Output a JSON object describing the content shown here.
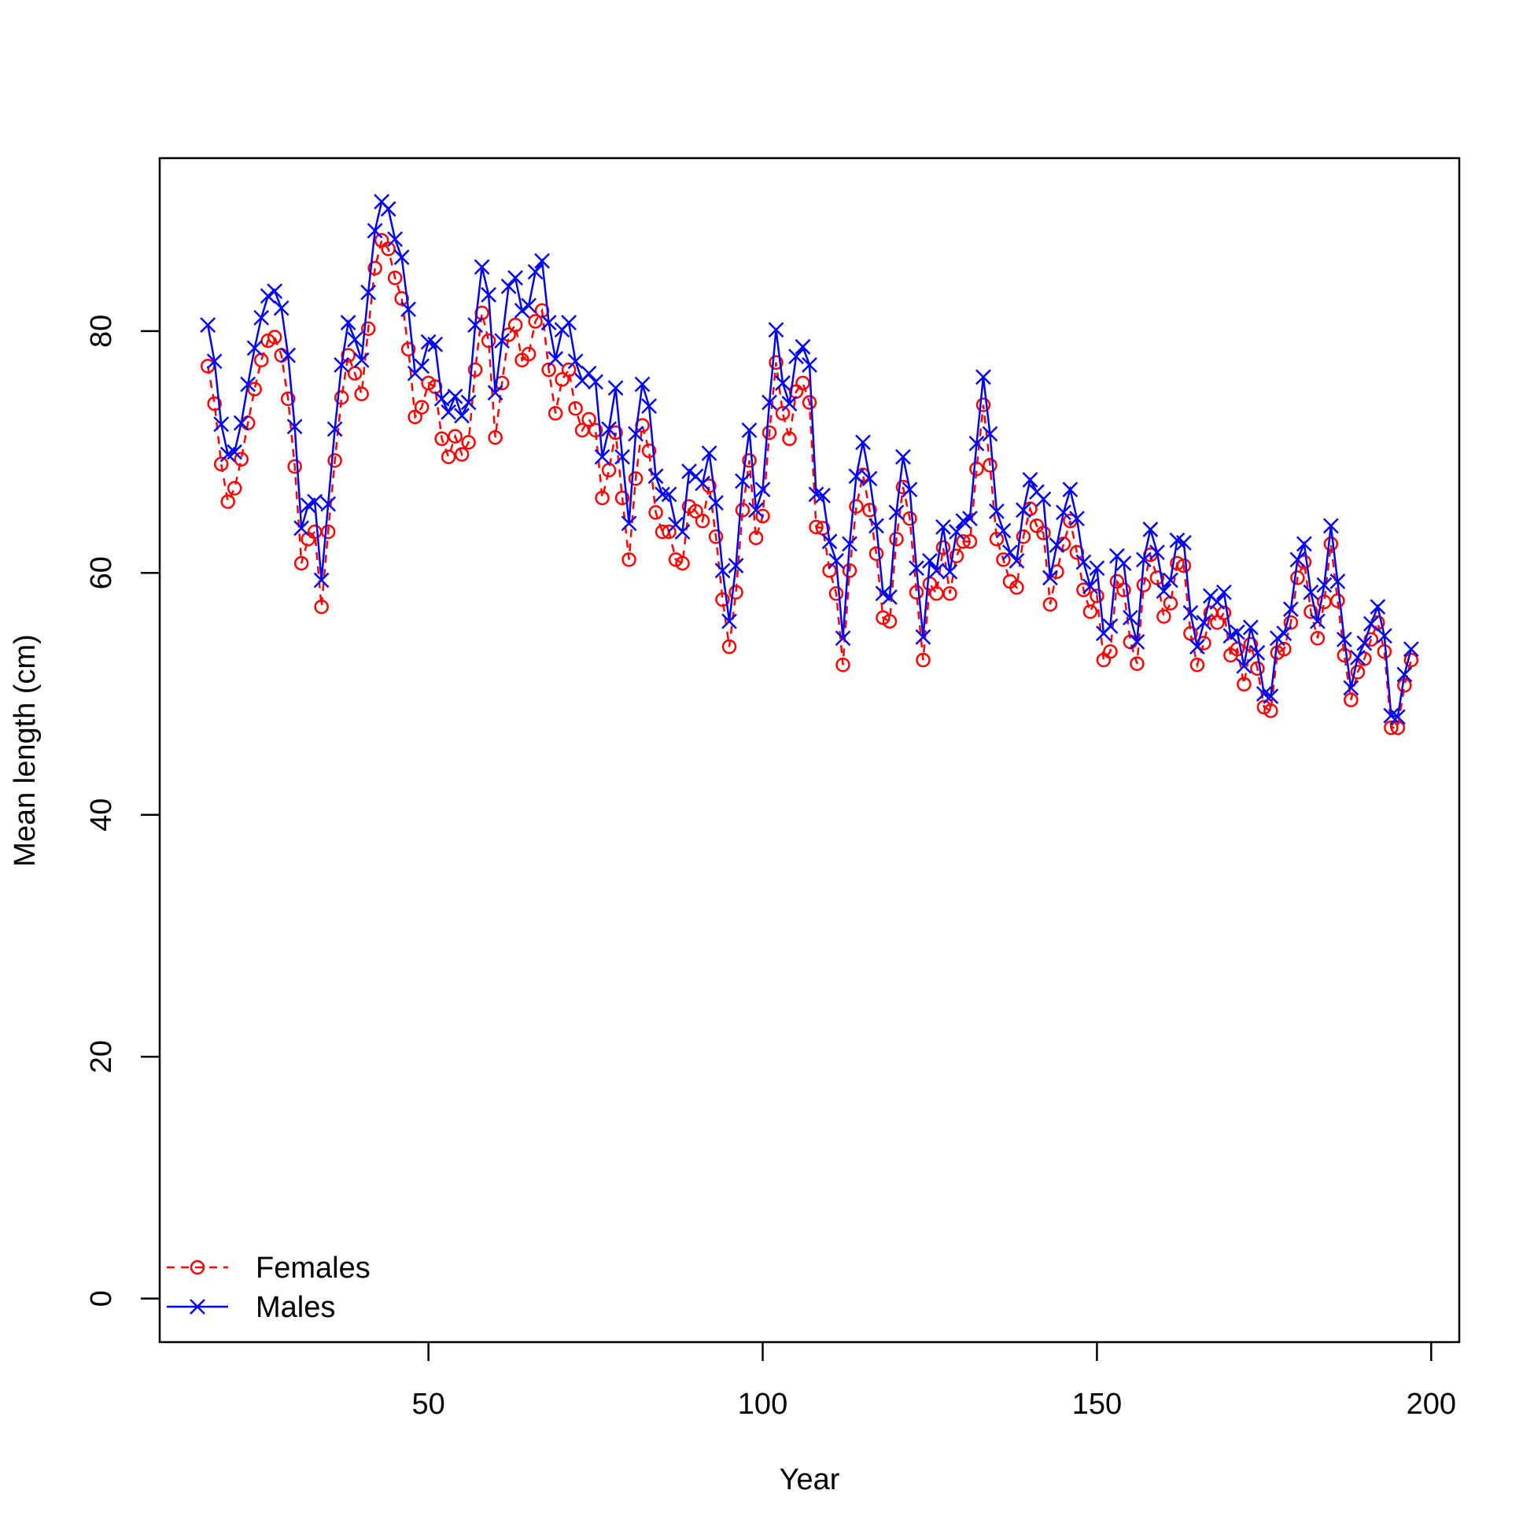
{
  "chart_data": {
    "type": "line",
    "x_label": "Year",
    "y_label": "Mean length (cm)",
    "x": [
      17,
      18,
      19,
      20,
      21,
      22,
      23,
      24,
      25,
      26,
      27,
      28,
      29,
      30,
      31,
      32,
      33,
      34,
      35,
      36,
      37,
      38,
      39,
      40,
      41,
      42,
      43,
      44,
      45,
      46,
      47,
      48,
      49,
      50,
      51,
      52,
      53,
      54,
      55,
      56,
      57,
      58,
      59,
      60,
      61,
      62,
      63,
      64,
      65,
      66,
      67,
      68,
      69,
      70,
      71,
      72,
      73,
      74,
      75,
      76,
      77,
      78,
      79,
      80,
      81,
      82,
      83,
      84,
      85,
      86,
      87,
      88,
      89,
      90,
      91,
      92,
      93,
      94,
      95,
      96,
      97,
      98,
      99,
      100,
      101,
      102,
      103,
      104,
      105,
      106,
      107,
      108,
      109,
      110,
      111,
      112,
      113,
      114,
      115,
      116,
      117,
      118,
      119,
      120,
      121,
      122,
      123,
      124,
      125,
      126,
      127,
      128,
      129,
      130,
      131,
      132,
      133,
      134,
      135,
      136,
      137,
      138,
      139,
      140,
      141,
      142,
      143,
      144,
      145,
      146,
      147,
      148,
      149,
      150,
      151,
      152,
      153,
      154,
      155,
      156,
      157,
      158,
      159,
      160,
      161,
      162,
      163,
      164,
      165,
      166,
      167,
      168,
      169,
      170,
      171,
      172,
      173,
      174,
      175,
      176,
      177,
      178,
      179,
      180,
      181,
      182,
      183,
      184,
      185,
      186,
      187,
      188,
      189,
      190,
      191,
      192,
      193,
      194,
      195,
      196,
      197
    ],
    "series": [
      {
        "name": "Females",
        "color": "#ff0000",
        "line": "dashed",
        "marker": "circle",
        "values": [
          77.1,
          74.0,
          69.0,
          65.9,
          67.0,
          69.4,
          72.4,
          75.2,
          77.6,
          79.2,
          79.5,
          78.0,
          74.4,
          68.8,
          60.8,
          62.8,
          63.4,
          57.2,
          63.4,
          69.3,
          74.5,
          78.0,
          76.5,
          74.8,
          80.2,
          85.2,
          87.5,
          86.8,
          84.4,
          82.7,
          78.5,
          72.9,
          73.7,
          75.7,
          75.4,
          71.1,
          69.6,
          71.3,
          69.8,
          70.8,
          76.8,
          81.5,
          79.2,
          71.2,
          75.7,
          79.7,
          80.5,
          77.6,
          78.1,
          80.8,
          81.7,
          76.8,
          73.2,
          76.0,
          76.8,
          73.6,
          71.8,
          72.7,
          71.8,
          66.2,
          68.5,
          71.6,
          66.2,
          61.1,
          67.8,
          72.2,
          70.1,
          65.0,
          63.4,
          63.4,
          61.1,
          60.8,
          65.5,
          65.1,
          64.3,
          67.2,
          63.0,
          57.8,
          53.9,
          58.4,
          65.2,
          69.3,
          62.9,
          64.7,
          71.6,
          77.4,
          73.2,
          71.1,
          75.0,
          75.7,
          74.1,
          63.8,
          63.7,
          60.2,
          58.3,
          52.4,
          60.2,
          65.5,
          68.1,
          65.2,
          61.6,
          56.3,
          56.0,
          62.8,
          67.1,
          64.5,
          58.4,
          52.8,
          59.1,
          58.3,
          62.1,
          58.3,
          61.4,
          62.6,
          62.6,
          68.6,
          73.9,
          68.9,
          62.8,
          61.1,
          59.3,
          58.8,
          63.0,
          65.3,
          63.9,
          63.3,
          57.4,
          60.1,
          62.4,
          64.3,
          61.7,
          58.6,
          56.8,
          58.1,
          52.8,
          53.5,
          59.3,
          58.6,
          54.3,
          52.5,
          59.0,
          61.5,
          59.6,
          56.4,
          57.5,
          60.8,
          60.6,
          55.0,
          52.4,
          54.2,
          56.7,
          55.9,
          56.7,
          53.2,
          53.7,
          50.8,
          54.1,
          52.1,
          48.9,
          48.6,
          53.4,
          53.7,
          55.9,
          59.6,
          60.9,
          56.8,
          54.6,
          57.6,
          62.4,
          57.7,
          53.2,
          49.5,
          51.8,
          52.9,
          54.5,
          55.9,
          53.5,
          47.2,
          47.2,
          50.7,
          52.8
        ]
      },
      {
        "name": "Males",
        "color": "#0000ff",
        "line": "solid",
        "marker": "x",
        "values": [
          80.5,
          77.5,
          72.3,
          69.8,
          70.0,
          72.4,
          75.6,
          78.6,
          81.1,
          82.9,
          83.3,
          81.9,
          78.0,
          72.1,
          63.7,
          65.6,
          65.9,
          59.4,
          65.7,
          71.9,
          77.2,
          80.7,
          79.3,
          77.6,
          83.2,
          88.3,
          90.7,
          90.1,
          87.6,
          86.1,
          81.8,
          76.5,
          77.1,
          79.1,
          78.9,
          74.4,
          73.3,
          74.6,
          73.0,
          74.1,
          80.5,
          85.3,
          83.0,
          74.9,
          79.2,
          83.7,
          84.4,
          81.7,
          82.1,
          84.9,
          85.8,
          80.7,
          77.7,
          80.1,
          80.7,
          77.5,
          75.9,
          76.5,
          75.8,
          69.6,
          71.9,
          75.3,
          69.6,
          64.1,
          71.5,
          75.6,
          73.8,
          68.0,
          66.5,
          66.5,
          64.0,
          63.4,
          68.4,
          68.0,
          67.4,
          69.9,
          65.8,
          60.2,
          56.0,
          60.6,
          67.6,
          71.8,
          65.2,
          66.9,
          74.1,
          80.1,
          75.7,
          74.0,
          77.9,
          78.7,
          77.2,
          66.5,
          66.4,
          62.6,
          61.0,
          54.6,
          62.4,
          68.0,
          70.8,
          67.8,
          63.9,
          58.3,
          58.0,
          65.0,
          69.6,
          66.9,
          60.4,
          54.7,
          61.0,
          60.2,
          63.8,
          60.1,
          63.4,
          64.3,
          64.5,
          70.7,
          76.2,
          71.5,
          65.1,
          63.5,
          61.7,
          61.0,
          65.2,
          67.7,
          66.7,
          66.1,
          59.6,
          62.3,
          65.0,
          66.9,
          64.5,
          60.9,
          58.9,
          60.4,
          55.0,
          55.6,
          61.4,
          60.8,
          56.3,
          54.3,
          61.1,
          63.6,
          61.7,
          58.5,
          59.4,
          62.7,
          62.5,
          56.7,
          53.9,
          55.9,
          58.1,
          57.6,
          58.4,
          54.8,
          55.1,
          52.3,
          55.5,
          53.4,
          50.0,
          49.8,
          54.6,
          55.0,
          57.0,
          61.1,
          62.4,
          58.4,
          56.0,
          59.0,
          63.9,
          59.3,
          54.5,
          50.5,
          53.0,
          54.2,
          55.8,
          57.2,
          54.8,
          48.2,
          48.1,
          51.6,
          53.7
        ]
      }
    ],
    "xlim": [
      9.8,
      204.2
    ],
    "xticks": [
      50,
      100,
      150,
      200
    ],
    "ylim": [
      -3.6,
      94.3
    ],
    "yticks": [
      0,
      20,
      40,
      60,
      80
    ],
    "legend": "bottomleft"
  }
}
